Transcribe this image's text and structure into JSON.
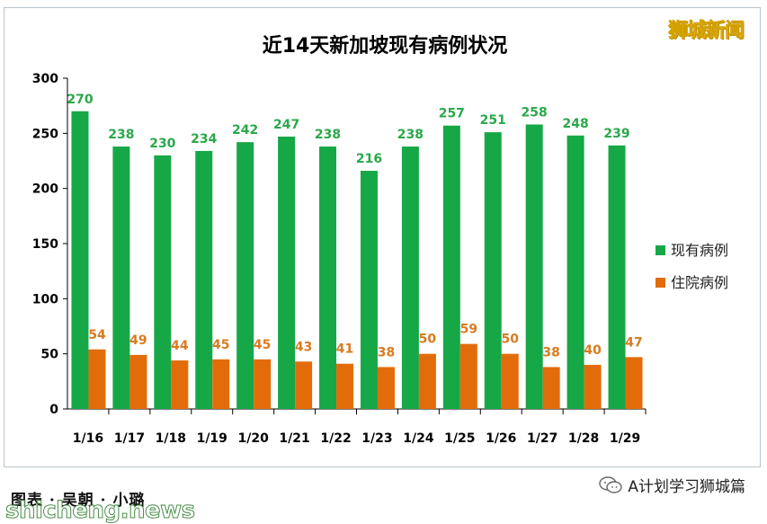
{
  "brand": {
    "name": "狮城新闻"
  },
  "footer": {
    "credit": "图表 ·  吴朝 · 小璐",
    "site": "shicheng.news",
    "wechat_source": "A计划学习狮城篇"
  },
  "colors": {
    "current_cases": "#16a846",
    "hospitalized": "#e36c0a",
    "current_label": "#2aa84a",
    "hosp_label": "#d97a22",
    "axis": "#000000",
    "grid": "#d9d9d9"
  },
  "chart_data": {
    "type": "bar",
    "title": "近14天新加坡现有病例状况",
    "categories": [
      "1/16",
      "1/17",
      "1/18",
      "1/19",
      "1/20",
      "1/21",
      "1/22",
      "1/23",
      "1/24",
      "1/25",
      "1/26",
      "1/27",
      "1/28",
      "1/29"
    ],
    "series": [
      {
        "name": "现有病例",
        "values": [
          270,
          238,
          230,
          234,
          242,
          247,
          238,
          216,
          238,
          257,
          251,
          258,
          248,
          239
        ]
      },
      {
        "name": "住院病例",
        "values": [
          54,
          49,
          44,
          45,
          45,
          43,
          41,
          38,
          50,
          59,
          50,
          38,
          40,
          47
        ]
      }
    ],
    "ylim": [
      0,
      300
    ],
    "yticks": [
      0,
      50,
      100,
      150,
      200,
      250,
      300
    ],
    "grid": false,
    "legend": "right",
    "data_labels": true
  }
}
